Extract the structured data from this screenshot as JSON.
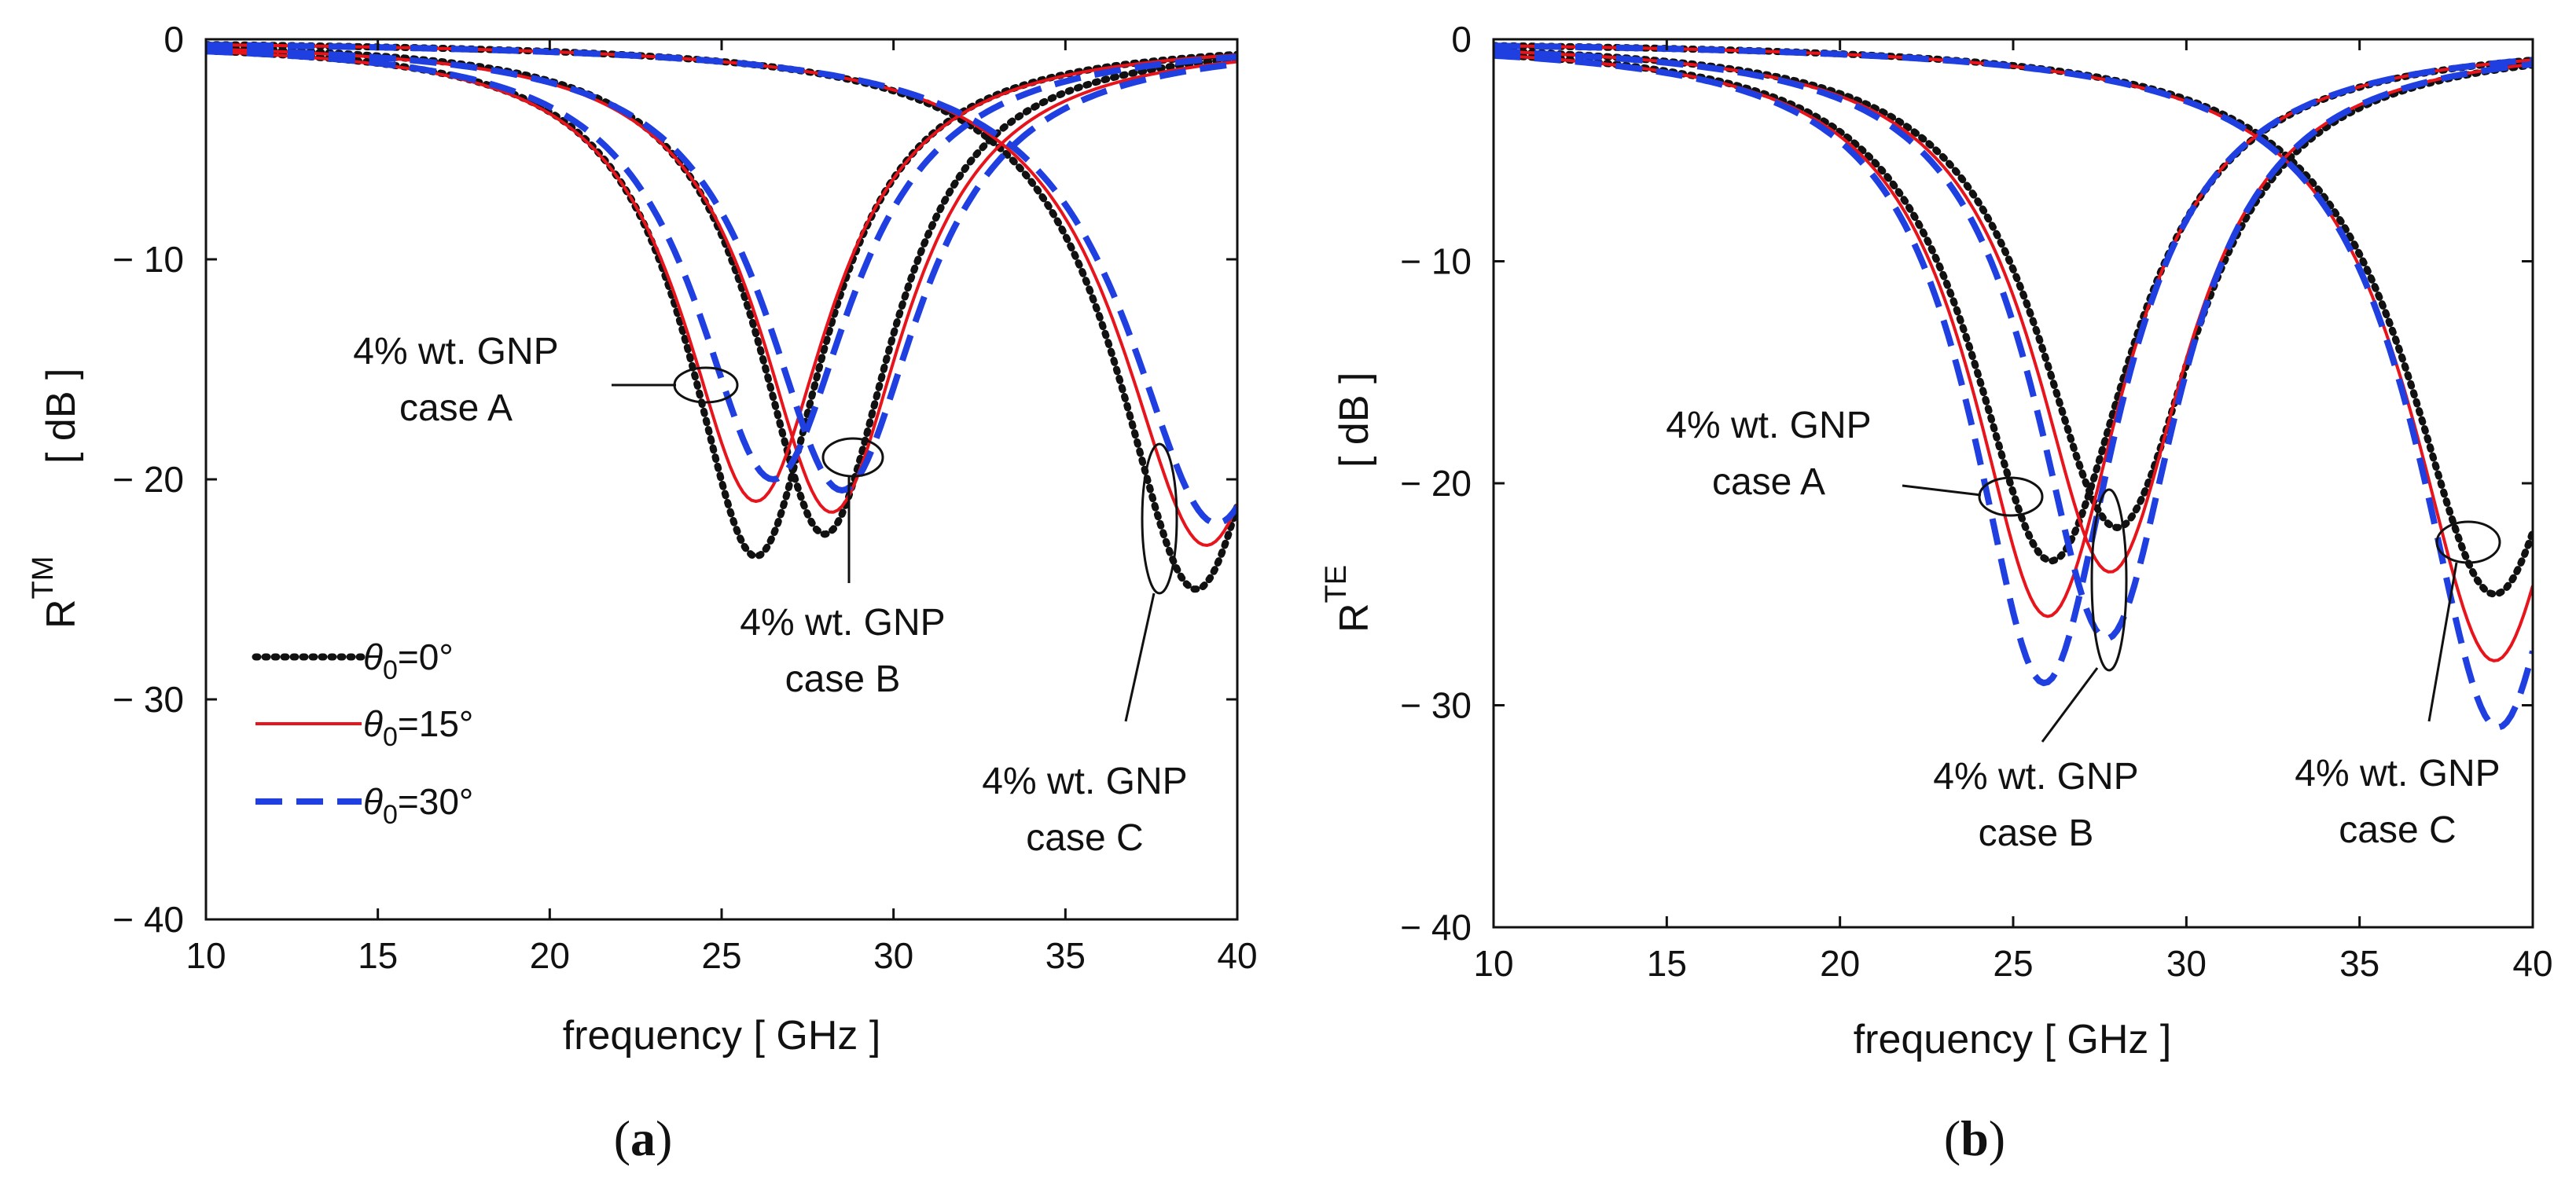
{
  "chart_data": [
    {
      "type": "line",
      "panel_label": {
        "open": "(",
        "letter": "a",
        "close": ")"
      },
      "xlabel": "frequency [ GHz ]",
      "ylabel_main": "R",
      "ylabel_super": "TM",
      "ylabel_unit": "[ dB ]",
      "xlim": [
        10,
        40
      ],
      "ylim": [
        -40,
        0
      ],
      "xticks": [
        10,
        15,
        20,
        25,
        30,
        35,
        40
      ],
      "yticks": [
        0,
        -10,
        -20,
        -30,
        -40
      ],
      "ytick_labels": [
        "0",
        "− 10",
        "− 20",
        "− 30",
        "− 40"
      ],
      "series": [
        {
          "name": "theta0=0",
          "style": "dotted",
          "color": "#111111",
          "cases": [
            {
              "case": "A",
              "f0": 26.0,
              "depth": 23.5,
              "w": 3.6
            },
            {
              "case": "B",
              "f0": 28.0,
              "depth": 22.5,
              "w": 3.6
            },
            {
              "case": "C",
              "f0": 38.8,
              "depth": 25.0,
              "w": 4.2
            }
          ]
        },
        {
          "name": "theta0=15",
          "style": "solid",
          "color": "#e8141c",
          "cases": [
            {
              "case": "A",
              "f0": 26.0,
              "depth": 21.0,
              "w": 3.9
            },
            {
              "case": "B",
              "f0": 28.2,
              "depth": 21.5,
              "w": 3.9
            },
            {
              "case": "C",
              "f0": 39.1,
              "depth": 23.0,
              "w": 4.5
            }
          ]
        },
        {
          "name": "theta0=30",
          "style": "dashed",
          "color": "#1f3fe0",
          "cases": [
            {
              "case": "A",
              "f0": 26.5,
              "depth": 20.0,
              "w": 4.1
            },
            {
              "case": "B",
              "f0": 28.5,
              "depth": 20.5,
              "w": 4.1
            },
            {
              "case": "C",
              "f0": 39.4,
              "depth": 22.0,
              "w": 4.7
            }
          ]
        }
      ],
      "annotations": [
        {
          "line1": "4% wt. GNP",
          "line2": "case A"
        },
        {
          "line1": "4% wt. GNP",
          "line2": "case B"
        },
        {
          "line1": "4% wt. GNP",
          "line2": "case C"
        }
      ],
      "legend": {
        "position": "bottom-left",
        "entries": [
          {
            "symbol": "θ",
            "sub": "0",
            "value": "=0°"
          },
          {
            "symbol": "θ",
            "sub": "0",
            "value": "=15°"
          },
          {
            "symbol": "θ",
            "sub": "0",
            "value": "=30°"
          }
        ]
      }
    },
    {
      "type": "line",
      "panel_label": {
        "open": "(",
        "letter": "b",
        "close": ")"
      },
      "xlabel": "frequency [ GHz ]",
      "ylabel_main": "R",
      "ylabel_super": "TE",
      "ylabel_unit": "[ dB ]",
      "xlim": [
        10,
        40
      ],
      "ylim": [
        -40,
        0
      ],
      "xticks": [
        10,
        15,
        20,
        25,
        30,
        35,
        40
      ],
      "yticks": [
        0,
        -10,
        -20,
        -30,
        -40
      ],
      "ytick_labels": [
        "0",
        "− 10",
        "− 20",
        "− 30",
        "− 40"
      ],
      "series": [
        {
          "name": "theta0=0",
          "style": "dotted",
          "color": "#111111",
          "cases": [
            {
              "case": "A",
              "f0": 26.1,
              "depth": 23.5,
              "w": 4.2
            },
            {
              "case": "B",
              "f0": 28.0,
              "depth": 22.0,
              "w": 4.2
            },
            {
              "case": "C",
              "f0": 38.9,
              "depth": 25.0,
              "w": 4.6
            }
          ]
        },
        {
          "name": "theta0=15",
          "style": "solid",
          "color": "#e8141c",
          "cases": [
            {
              "case": "A",
              "f0": 26.0,
              "depth": 26.0,
              "w": 4.0
            },
            {
              "case": "B",
              "f0": 27.8,
              "depth": 24.0,
              "w": 4.0
            },
            {
              "case": "C",
              "f0": 38.9,
              "depth": 28.0,
              "w": 4.4
            }
          ]
        },
        {
          "name": "theta0=30",
          "style": "dashed",
          "color": "#1f3fe0",
          "cases": [
            {
              "case": "A",
              "f0": 25.9,
              "depth": 29.0,
              "w": 3.8
            },
            {
              "case": "B",
              "f0": 27.7,
              "depth": 27.0,
              "w": 3.8
            },
            {
              "case": "C",
              "f0": 39.0,
              "depth": 31.0,
              "w": 4.2
            }
          ]
        }
      ],
      "annotations": [
        {
          "line1": "4% wt. GNP",
          "line2": "case A"
        },
        {
          "line1": "4% wt. GNP",
          "line2": "case B"
        },
        {
          "line1": "4% wt. GNP",
          "line2": "case C"
        }
      ],
      "legend": null
    }
  ]
}
